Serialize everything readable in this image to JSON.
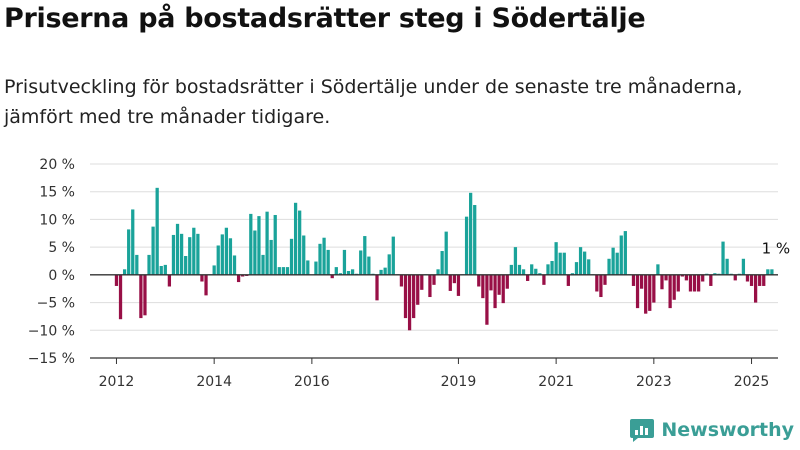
{
  "title": "Priserna på bostadsrätter steg i Södertälje",
  "subtitle": "Prisutveckling för bostadsrätter i Södertälje under de senaste tre månaderna, jämfört med tre månader tidigare.",
  "brand": {
    "name": "Newsworthy",
    "color": "#3a9e96"
  },
  "colors": {
    "positive": "#1aa39a",
    "negative": "#980f46",
    "grid": "#dddddd",
    "zero": "#333333"
  },
  "chart_data": {
    "type": "bar",
    "title": "Priserna på bostadsrätter steg i Södertälje",
    "xlabel": "",
    "ylabel": "",
    "ylim": [
      -15,
      20
    ],
    "yticks": [
      -15,
      -10,
      -5,
      0,
      5,
      10,
      15,
      20
    ],
    "ytick_labels": [
      "−15 %",
      "−10 %",
      "−5 %",
      "0 %",
      "5 %",
      "10 %",
      "15 %",
      "20 %"
    ],
    "xlim": [
      "2011-07",
      "2025-08"
    ],
    "xticks": [
      {
        "date": "2012-01",
        "label": "2012"
      },
      {
        "date": "2014-01",
        "label": "2014"
      },
      {
        "date": "2016-01",
        "label": "2016"
      },
      {
        "date": "2019-01",
        "label": "2019"
      },
      {
        "date": "2021-01",
        "label": "2021"
      },
      {
        "date": "2023-01",
        "label": "2023"
      },
      {
        "date": "2025-01",
        "label": "2025"
      }
    ],
    "grid": true,
    "legend": "none",
    "series": [
      {
        "values": [
          {
            "date": "2012-01",
            "value": -2
          },
          {
            "date": "2012-02",
            "value": -8
          },
          {
            "date": "2012-03",
            "value": 1
          },
          {
            "date": "2012-04",
            "value": 8.2
          },
          {
            "date": "2012-05",
            "value": 11.8
          },
          {
            "date": "2012-06",
            "value": 3.6
          },
          {
            "date": "2012-07",
            "value": -7.8
          },
          {
            "date": "2012-08",
            "value": -7.3
          },
          {
            "date": "2012-09",
            "value": 3.6
          },
          {
            "date": "2012-10",
            "value": 8.7
          },
          {
            "date": "2012-11",
            "value": 15.7
          },
          {
            "date": "2012-12",
            "value": 1.6
          },
          {
            "date": "2013-01",
            "value": 1.8
          },
          {
            "date": "2013-02",
            "value": -2.1
          },
          {
            "date": "2013-03",
            "value": 7.2
          },
          {
            "date": "2013-04",
            "value": 9.2
          },
          {
            "date": "2013-05",
            "value": 7.4
          },
          {
            "date": "2013-06",
            "value": 3.4
          },
          {
            "date": "2013-07",
            "value": 6.8
          },
          {
            "date": "2013-08",
            "value": 8.5
          },
          {
            "date": "2013-09",
            "value": 7.4
          },
          {
            "date": "2013-10",
            "value": -1.2
          },
          {
            "date": "2013-11",
            "value": -3.7
          },
          {
            "date": "2013-12",
            "value": 0.1
          },
          {
            "date": "2014-01",
            "value": 1.7
          },
          {
            "date": "2014-02",
            "value": 5.3
          },
          {
            "date": "2014-03",
            "value": 7.3
          },
          {
            "date": "2014-04",
            "value": 8.5
          },
          {
            "date": "2014-05",
            "value": 6.6
          },
          {
            "date": "2014-06",
            "value": 3.5
          },
          {
            "date": "2014-07",
            "value": -1.3
          },
          {
            "date": "2014-08",
            "value": -0.3
          },
          {
            "date": "2014-09",
            "value": -0.2
          },
          {
            "date": "2014-10",
            "value": 11
          },
          {
            "date": "2014-11",
            "value": 8
          },
          {
            "date": "2014-12",
            "value": 10.6
          },
          {
            "date": "2015-01",
            "value": 3.6
          },
          {
            "date": "2015-02",
            "value": 11.4
          },
          {
            "date": "2015-03",
            "value": 6.3
          },
          {
            "date": "2015-04",
            "value": 10.8
          },
          {
            "date": "2015-05",
            "value": 1.4
          },
          {
            "date": "2015-06",
            "value": 1.4
          },
          {
            "date": "2015-07",
            "value": 1.4
          },
          {
            "date": "2015-08",
            "value": 6.5
          },
          {
            "date": "2015-09",
            "value": 13
          },
          {
            "date": "2015-10",
            "value": 11.6
          },
          {
            "date": "2015-11",
            "value": 7.1
          },
          {
            "date": "2015-12",
            "value": 2.6
          },
          {
            "date": "2016-01",
            "value": -0.1
          },
          {
            "date": "2016-02",
            "value": 2.4
          },
          {
            "date": "2016-03",
            "value": 5.6
          },
          {
            "date": "2016-04",
            "value": 6.7
          },
          {
            "date": "2016-05",
            "value": 4.5
          },
          {
            "date": "2016-06",
            "value": -0.6
          },
          {
            "date": "2016-07",
            "value": 1.4
          },
          {
            "date": "2016-08",
            "value": 0.3
          },
          {
            "date": "2016-09",
            "value": 4.5
          },
          {
            "date": "2016-10",
            "value": 0.7
          },
          {
            "date": "2016-11",
            "value": 1
          },
          {
            "date": "2016-12",
            "value": 0.2
          },
          {
            "date": "2017-01",
            "value": 4.4
          },
          {
            "date": "2017-02",
            "value": 7
          },
          {
            "date": "2017-03",
            "value": 3.3
          },
          {
            "date": "2017-04",
            "value": 0.2
          },
          {
            "date": "2017-05",
            "value": -4.6
          },
          {
            "date": "2017-06",
            "value": 0.9
          },
          {
            "date": "2017-07",
            "value": 1.3
          },
          {
            "date": "2017-08",
            "value": 3.7
          },
          {
            "date": "2017-09",
            "value": 6.9
          },
          {
            "date": "2017-10",
            "value": 0.1
          },
          {
            "date": "2017-11",
            "value": -2.1
          },
          {
            "date": "2017-12",
            "value": -7.8
          },
          {
            "date": "2018-01",
            "value": -10
          },
          {
            "date": "2018-02",
            "value": -7.8
          },
          {
            "date": "2018-03",
            "value": -5.4
          },
          {
            "date": "2018-04",
            "value": -2.7
          },
          {
            "date": "2018-05",
            "value": 0.1
          },
          {
            "date": "2018-06",
            "value": -4
          },
          {
            "date": "2018-07",
            "value": -1.8
          },
          {
            "date": "2018-08",
            "value": 1
          },
          {
            "date": "2018-09",
            "value": 4.3
          },
          {
            "date": "2018-10",
            "value": 7.8
          },
          {
            "date": "2018-11",
            "value": -2.9
          },
          {
            "date": "2018-12",
            "value": -1.5
          },
          {
            "date": "2019-01",
            "value": -3.8
          },
          {
            "date": "2019-02",
            "value": 0.1
          },
          {
            "date": "2019-03",
            "value": 10.5
          },
          {
            "date": "2019-04",
            "value": 14.8
          },
          {
            "date": "2019-05",
            "value": 12.6
          },
          {
            "date": "2019-06",
            "value": -2.1
          },
          {
            "date": "2019-07",
            "value": -4.2
          },
          {
            "date": "2019-08",
            "value": -9
          },
          {
            "date": "2019-09",
            "value": -2.8
          },
          {
            "date": "2019-10",
            "value": -6
          },
          {
            "date": "2019-11",
            "value": -3.6
          },
          {
            "date": "2019-12",
            "value": -5.1
          },
          {
            "date": "2020-01",
            "value": -2.5
          },
          {
            "date": "2020-02",
            "value": 1.8
          },
          {
            "date": "2020-03",
            "value": 5
          },
          {
            "date": "2020-04",
            "value": 1.8
          },
          {
            "date": "2020-05",
            "value": 1
          },
          {
            "date": "2020-06",
            "value": -1.1
          },
          {
            "date": "2020-07",
            "value": 1.9
          },
          {
            "date": "2020-08",
            "value": 1.1
          },
          {
            "date": "2020-09",
            "value": 0.3
          },
          {
            "date": "2020-10",
            "value": -1.8
          },
          {
            "date": "2020-11",
            "value": 1.9
          },
          {
            "date": "2020-12",
            "value": 2.5
          },
          {
            "date": "2021-01",
            "value": 5.9
          },
          {
            "date": "2021-02",
            "value": 4
          },
          {
            "date": "2021-03",
            "value": 4
          },
          {
            "date": "2021-04",
            "value": -2
          },
          {
            "date": "2021-05",
            "value": 0.3
          },
          {
            "date": "2021-06",
            "value": 2.3
          },
          {
            "date": "2021-07",
            "value": 5
          },
          {
            "date": "2021-08",
            "value": 4.2
          },
          {
            "date": "2021-09",
            "value": 2.8
          },
          {
            "date": "2021-10",
            "value": 0.1
          },
          {
            "date": "2021-11",
            "value": -3
          },
          {
            "date": "2021-12",
            "value": -4
          },
          {
            "date": "2022-01",
            "value": -1.8
          },
          {
            "date": "2022-02",
            "value": 2.9
          },
          {
            "date": "2022-03",
            "value": 4.9
          },
          {
            "date": "2022-04",
            "value": 4
          },
          {
            "date": "2022-05",
            "value": 7.1
          },
          {
            "date": "2022-06",
            "value": 7.9
          },
          {
            "date": "2022-07",
            "value": 0.1
          },
          {
            "date": "2022-08",
            "value": -2
          },
          {
            "date": "2022-09",
            "value": -6
          },
          {
            "date": "2022-10",
            "value": -2.5
          },
          {
            "date": "2022-11",
            "value": -7
          },
          {
            "date": "2022-12",
            "value": -6.5
          },
          {
            "date": "2023-01",
            "value": -5
          },
          {
            "date": "2023-02",
            "value": 1.9
          },
          {
            "date": "2023-03",
            "value": -2.6
          },
          {
            "date": "2023-04",
            "value": -1
          },
          {
            "date": "2023-05",
            "value": -6
          },
          {
            "date": "2023-06",
            "value": -4.5
          },
          {
            "date": "2023-07",
            "value": -3
          },
          {
            "date": "2023-08",
            "value": -0.3
          },
          {
            "date": "2023-09",
            "value": -1
          },
          {
            "date": "2023-10",
            "value": -3
          },
          {
            "date": "2023-11",
            "value": -3
          },
          {
            "date": "2023-12",
            "value": -3
          },
          {
            "date": "2024-01",
            "value": -1.2
          },
          {
            "date": "2024-02",
            "value": 0.2
          },
          {
            "date": "2024-03",
            "value": -2
          },
          {
            "date": "2024-04",
            "value": 0.3
          },
          {
            "date": "2024-05",
            "value": 0.2
          },
          {
            "date": "2024-06",
            "value": 6
          },
          {
            "date": "2024-07",
            "value": 2.9
          },
          {
            "date": "2024-08",
            "value": 0.2
          },
          {
            "date": "2024-09",
            "value": -1
          },
          {
            "date": "2024-10",
            "value": 0.2
          },
          {
            "date": "2024-11",
            "value": 2.9
          },
          {
            "date": "2024-12",
            "value": -1.2
          },
          {
            "date": "2025-01",
            "value": -2
          },
          {
            "date": "2025-02",
            "value": -5
          },
          {
            "date": "2025-03",
            "value": -2
          },
          {
            "date": "2025-04",
            "value": -2
          },
          {
            "date": "2025-05",
            "value": 1
          },
          {
            "date": "2025-06",
            "value": 1
          }
        ]
      }
    ],
    "annotations": [
      {
        "date": "2025-06",
        "value": 1,
        "label": "1 %"
      }
    ]
  }
}
